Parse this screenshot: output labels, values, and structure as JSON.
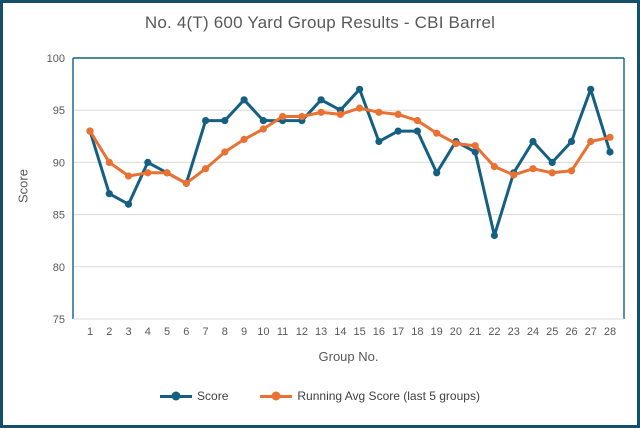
{
  "window": {
    "title": "No. 4(T) 600 Yard Group Results - CBI Barrel"
  },
  "chart_data": {
    "type": "line",
    "title": "No. 4(T) 600 Yard Group Results - CBI Barrel",
    "xlabel": "Group No.",
    "ylabel": "Score",
    "categories": [
      1,
      2,
      3,
      4,
      5,
      6,
      7,
      8,
      9,
      10,
      11,
      12,
      13,
      14,
      15,
      16,
      17,
      18,
      19,
      20,
      21,
      22,
      23,
      24,
      25,
      26,
      27,
      28
    ],
    "series": [
      {
        "name": "Score",
        "color": "#156082",
        "values": [
          93,
          87,
          86,
          90,
          89,
          88,
          94,
          94,
          96,
          94,
          94,
          94,
          96,
          95,
          97,
          92,
          93,
          93,
          89,
          92,
          91,
          83,
          89,
          92,
          90,
          92,
          97,
          91
        ]
      },
      {
        "name": "Running Avg Score (last 5 groups)",
        "color": "#E97132",
        "values": [
          93,
          90,
          88.7,
          89,
          89,
          88,
          89.4,
          91,
          92.2,
          93.2,
          94.4,
          94.4,
          94.8,
          94.6,
          95.2,
          94.8,
          94.6,
          94,
          92.8,
          91.8,
          91.6,
          89.6,
          88.8,
          89.4,
          89,
          89.2,
          92,
          92.4
        ]
      }
    ],
    "ylim": [
      75,
      100
    ],
    "yticks": [
      75,
      80,
      85,
      90,
      95,
      100
    ],
    "grid": "horizontal",
    "legend_position": "bottom",
    "marker": "circle"
  },
  "colors": {
    "frame_border": "#14506b",
    "plot_border": "#156082",
    "gridline": "#d9d9d9",
    "axis_line": "#d9d9d9",
    "tick_text": "#595959",
    "title_text": "#595959"
  }
}
